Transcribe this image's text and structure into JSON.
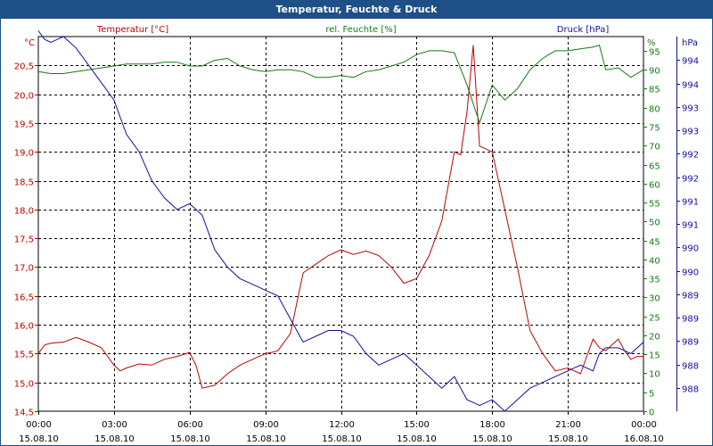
{
  "window": {
    "title": "Temperatur, Feuchte & Druck"
  },
  "colors": {
    "temperature": "#c00000",
    "humidity": "#157a15",
    "pressure": "#1010a0",
    "grid": "#000000",
    "titlebar": "#1e4f87"
  },
  "chart_data": {
    "type": "line",
    "title": "Temperatur, Feuchte & Druck",
    "grid": true,
    "x_ticks": [
      {
        "time": "00:00",
        "date": "15.08.10"
      },
      {
        "time": "03:00",
        "date": "15.08.10"
      },
      {
        "time": "06:00",
        "date": "15.08.10"
      },
      {
        "time": "09:00",
        "date": "15.08.10"
      },
      {
        "time": "12:00",
        "date": "15.08.10"
      },
      {
        "time": "15:00",
        "date": "15.08.10"
      },
      {
        "time": "18:00",
        "date": "15.08.10"
      },
      {
        "time": "21:00",
        "date": "15.08.10"
      },
      {
        "time": "00:00",
        "date": "16.08.10"
      }
    ],
    "x_range_hours": [
      0,
      24
    ],
    "axes": {
      "left": {
        "label": "Temperatur [°C]",
        "unit": "°C",
        "range": [
          14.5,
          21.0
        ],
        "ticks": [
          "14,5",
          "15,0",
          "15,5",
          "16,0",
          "16,5",
          "17,0",
          "17,5",
          "18,0",
          "18,5",
          "19,0",
          "19,5",
          "20,0",
          "20,5"
        ]
      },
      "right1": {
        "label": "rel. Feuchte [%]",
        "unit": "%",
        "range": [
          0,
          98.75
        ],
        "ticks": [
          "0",
          "5",
          "10",
          "15",
          "20",
          "25",
          "30",
          "35",
          "40",
          "45",
          "50",
          "55",
          "60",
          "65",
          "70",
          "75",
          "80",
          "85",
          "90",
          "95"
        ]
      },
      "right2": {
        "label": "Druck [hPa]",
        "unit": "hPa",
        "range": [
          987.5,
          994.0
        ],
        "ticks": [
          "988",
          "988",
          "989",
          "989",
          "989",
          "990",
          "990",
          "991",
          "991",
          "992",
          "992",
          "993",
          "993",
          "994",
          "994"
        ]
      }
    },
    "series": [
      {
        "name": "Temperatur [°C]",
        "axis": "left",
        "x": [
          0,
          0.25,
          0.5,
          1,
          1.5,
          1.75,
          2,
          2.5,
          3,
          3.25,
          3.5,
          4,
          4.5,
          5,
          5.5,
          6,
          6.25,
          6.5,
          7,
          7.5,
          8,
          8.5,
          9,
          9.25,
          9.5,
          10,
          10.5,
          11,
          11.5,
          12,
          12.5,
          13,
          13.5,
          14,
          14.5,
          15,
          15.5,
          16,
          16.5,
          16.75,
          17,
          17.25,
          17.5,
          18,
          18.5,
          19,
          19.5,
          20,
          20.5,
          21,
          21.5,
          22,
          22.25,
          22.5,
          23,
          23.25,
          23.5,
          23.75,
          24
        ],
        "values": [
          15.5,
          15.65,
          15.68,
          15.7,
          15.78,
          15.74,
          15.7,
          15.6,
          15.3,
          15.2,
          15.25,
          15.32,
          15.3,
          15.4,
          15.45,
          15.52,
          15.3,
          14.9,
          14.95,
          15.15,
          15.3,
          15.4,
          15.5,
          15.52,
          15.55,
          15.85,
          16.9,
          17.05,
          17.2,
          17.3,
          17.22,
          17.28,
          17.2,
          17.0,
          16.72,
          16.8,
          17.2,
          17.8,
          19.0,
          18.95,
          19.7,
          20.85,
          19.1,
          19.0,
          18.0,
          17.0,
          15.9,
          15.5,
          15.2,
          15.25,
          15.15,
          15.75,
          15.6,
          15.55,
          15.75,
          15.55,
          15.4,
          15.45,
          15.45
        ]
      },
      {
        "name": "rel. Feuchte [%]",
        "axis": "right1",
        "x": [
          0,
          0.5,
          1,
          1.5,
          2,
          2.5,
          3,
          3.5,
          4,
          4.5,
          5,
          5.5,
          6,
          6.5,
          7,
          7.5,
          8,
          8.5,
          9,
          9.5,
          10,
          10.5,
          11,
          11.5,
          12,
          12.5,
          13,
          13.5,
          14,
          14.5,
          15,
          15.5,
          16,
          16.5,
          17,
          17.5,
          18,
          18.5,
          19,
          19.5,
          20,
          20.5,
          21,
          21.5,
          22,
          22.25,
          22.5,
          23,
          23.5,
          24
        ],
        "values": [
          89.5,
          89,
          89,
          89.5,
          90,
          90.5,
          91,
          91.5,
          91.5,
          91.5,
          92,
          92,
          91,
          91,
          92.5,
          93,
          91,
          90,
          89.5,
          90,
          90,
          89.5,
          88,
          88,
          88.5,
          88,
          89.5,
          90,
          91,
          92,
          94,
          95,
          95,
          94.5,
          86,
          76,
          86,
          82,
          85,
          90,
          93,
          95,
          95,
          95.5,
          96,
          96.5,
          90,
          90.5,
          88,
          90
        ]
      },
      {
        "name": "Druck [hPa]",
        "axis": "right2",
        "x": [
          0,
          0.25,
          0.5,
          0.75,
          1,
          1.25,
          1.5,
          2,
          2.5,
          3,
          3.25,
          3.5,
          4,
          4.5,
          5,
          5.5,
          6,
          6.5,
          7,
          7.5,
          8,
          8.5,
          9,
          9.5,
          10,
          10.5,
          11,
          11.5,
          12,
          12.5,
          13,
          13.5,
          14,
          14.5,
          15,
          15.5,
          16,
          16.5,
          17,
          17.5,
          18,
          18.5,
          19,
          19.5,
          20,
          20.5,
          21,
          21.5,
          22,
          22.25,
          22.5,
          23,
          23.5,
          24
        ],
        "values": [
          994.1,
          993.95,
          993.9,
          993.95,
          994.0,
          993.9,
          993.8,
          993.5,
          993.2,
          992.9,
          992.6,
          992.3,
          992.0,
          991.5,
          991.2,
          991.0,
          991.1,
          990.9,
          990.3,
          990.0,
          989.8,
          989.7,
          989.6,
          989.5,
          989.1,
          988.7,
          988.8,
          988.9,
          988.9,
          988.8,
          988.5,
          988.3,
          988.4,
          988.5,
          988.3,
          988.1,
          987.9,
          988.1,
          987.7,
          987.6,
          987.7,
          987.5,
          987.7,
          987.9,
          988.0,
          988.1,
          988.2,
          988.3,
          988.2,
          988.5,
          988.6,
          988.6,
          988.5,
          988.7
        ]
      }
    ]
  }
}
